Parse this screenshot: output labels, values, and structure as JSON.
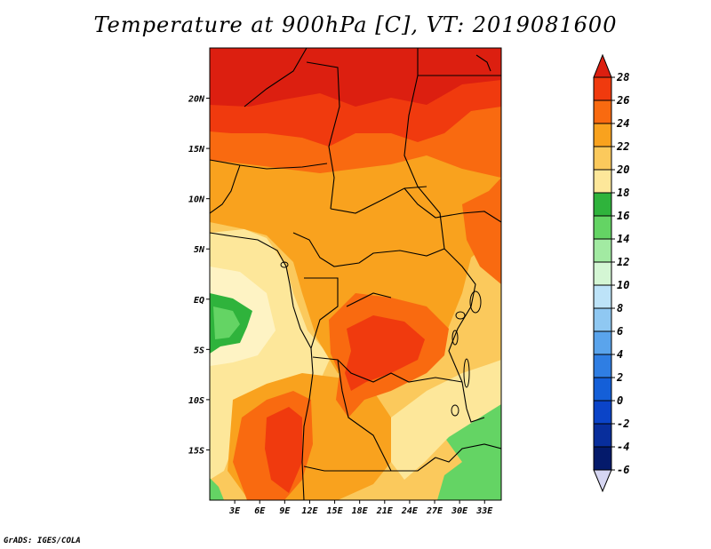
{
  "title": "Temperature at 900hPa [C], VT: 2019081600",
  "footer": "GrADS: IGES/COLA",
  "map": {
    "lon_range": [
      0,
      35
    ],
    "lat_range": [
      -20,
      25
    ],
    "x_ticks": [
      "3E",
      "6E",
      "9E",
      "12E",
      "15E",
      "18E",
      "21E",
      "24E",
      "27E",
      "30E",
      "33E"
    ],
    "y_ticks": [
      "20N",
      "15N",
      "10N",
      "5N",
      "EQ",
      "5S",
      "10S",
      "15S"
    ]
  },
  "colorbar": {
    "labels": [
      "28",
      "26",
      "24",
      "22",
      "20",
      "18",
      "16",
      "14",
      "12",
      "10",
      "8",
      "6",
      "4",
      "2",
      "0",
      "-2",
      "-4",
      "-6"
    ],
    "colors": [
      "#f03a0e",
      "#f96a10",
      "#f9a21e",
      "#fbc95c",
      "#fde79a",
      "#2fb33c",
      "#64d464",
      "#a2eaa2",
      "#d4f6d4",
      "#bde3f8",
      "#8fc8f2",
      "#5aa4ec",
      "#2f7ee3",
      "#145fd8",
      "#0b44c8",
      "#082e9c",
      "#041a6b"
    ],
    "top_arrow_color": "#dc1f10",
    "bottom_arrow_color": "#d6d6f2"
  }
}
